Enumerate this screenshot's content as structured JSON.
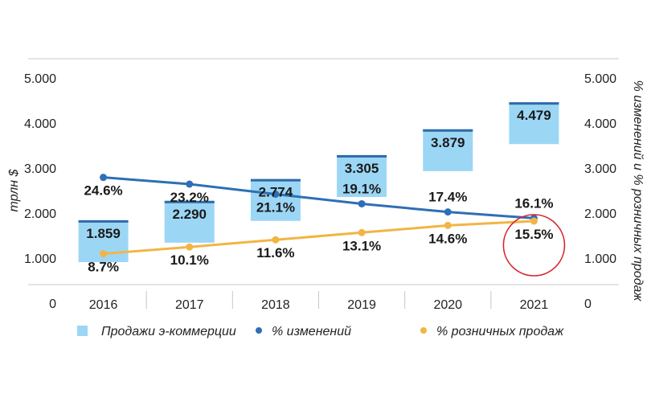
{
  "chart_data": {
    "type": "bar",
    "categories": [
      "2016",
      "2017",
      "2018",
      "2019",
      "2020",
      "2021"
    ],
    "ylabel_left": "трлн $",
    "ylabel_right": "% изменений и % розничных продаж",
    "yticks_left": [
      "0",
      "1.000",
      "2.000",
      "3.000",
      "4.000",
      "5.000"
    ],
    "yticks_right": [
      "0",
      "1.000",
      "2.000",
      "3.000",
      "4.000",
      "5.000"
    ],
    "ylim": [
      0,
      5000
    ],
    "grid": false,
    "legend_position": "bottom",
    "series": [
      {
        "name": "Продажи э-коммерции",
        "kind": "bar",
        "values": [
          1859,
          2290,
          2774,
          3305,
          3879,
          4479
        ],
        "labels": [
          "1.859",
          "2.290",
          "2.774",
          "3.305",
          "3.879",
          "4.479"
        ],
        "color": "#9cd6f5",
        "cap_color": "#2e6aa8"
      },
      {
        "name": "% изменений",
        "kind": "line",
        "values": [
          24.6,
          23.2,
          21.1,
          19.1,
          17.4,
          16.1
        ],
        "labels": [
          "24.6%",
          "23.2%",
          "21.1%",
          "19.1%",
          "17.4%",
          "16.1%"
        ],
        "color": "#2e6fb5"
      },
      {
        "name": "% розничных продаж",
        "kind": "line",
        "values": [
          8.7,
          10.1,
          11.6,
          13.1,
          14.6,
          15.5
        ],
        "labels": [
          "8.7%",
          "10.1%",
          "11.6%",
          "13.1%",
          "14.6%",
          "15.5%"
        ],
        "color": "#f2b544"
      }
    ],
    "highlight": {
      "category": "2021",
      "color": "#d9232d"
    }
  }
}
